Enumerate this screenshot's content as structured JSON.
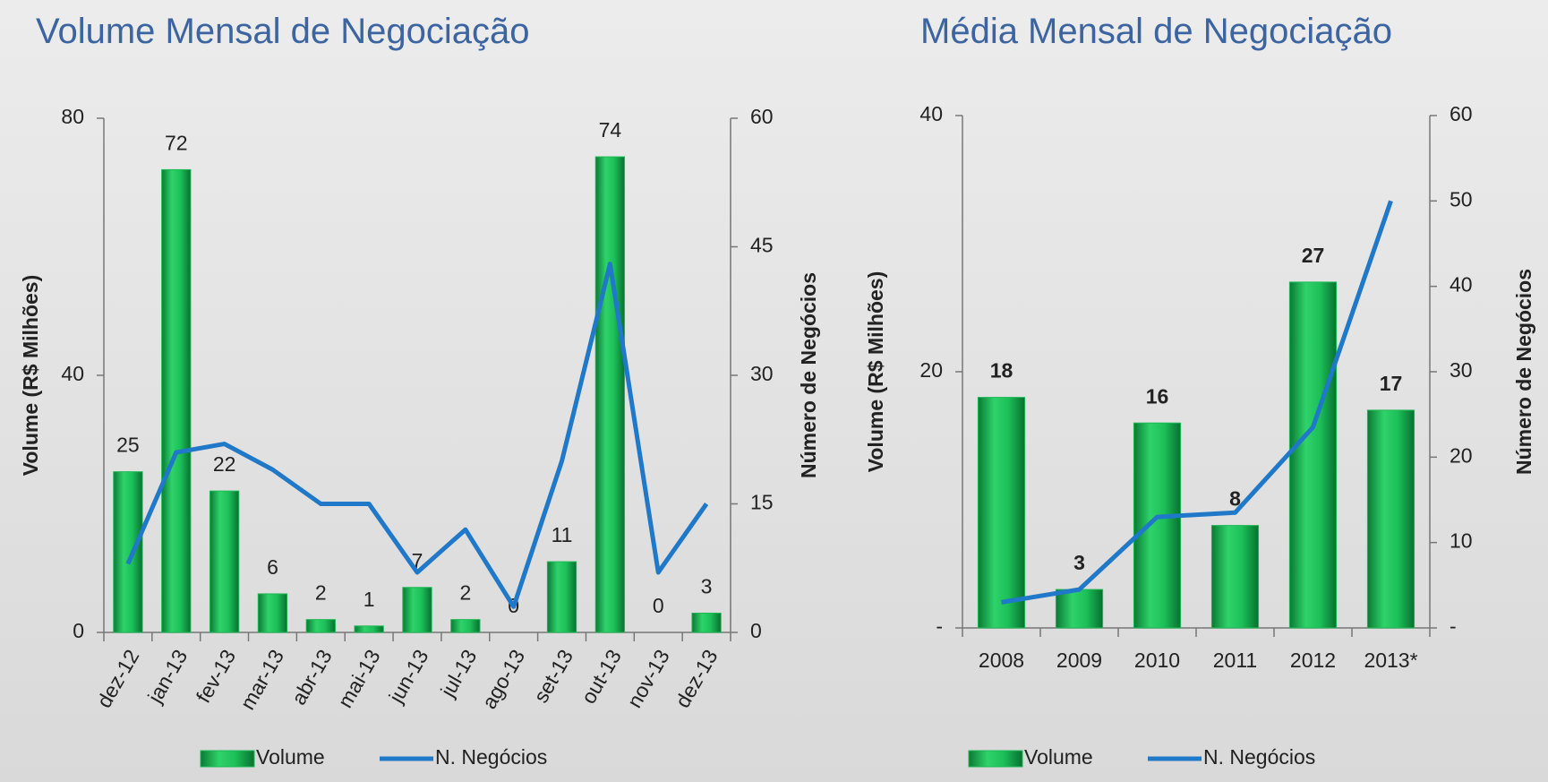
{
  "chart_data": [
    {
      "type": "bar-line",
      "title": "Volume Mensal de Negociação",
      "ylabel": "Volume (R$ Milhões)",
      "y2label": "Número de Negócios",
      "categories": [
        "dez-12",
        "jan-13",
        "fev-13",
        "mar-13",
        "abr-13",
        "mai-13",
        "jun-13",
        "jul-13",
        "ago-13",
        "set-13",
        "out-13",
        "nov-13",
        "dez-13"
      ],
      "series": [
        {
          "name": "Volume",
          "type": "bar",
          "color": "#1db954",
          "values": [
            25,
            72,
            22,
            6,
            2,
            1,
            7,
            2,
            0,
            11,
            74,
            0,
            3
          ]
        },
        {
          "name": "N. Negócios",
          "type": "line",
          "axis": "y2",
          "color": "#1f78c8",
          "values": [
            8,
            21,
            22,
            19,
            15,
            15,
            7,
            12,
            3,
            20,
            43,
            7,
            15
          ]
        }
      ],
      "ylim": [
        0,
        80
      ],
      "yticks": [
        0,
        40,
        80
      ],
      "y2lim": [
        0,
        60
      ],
      "y2ticks": [
        0,
        15,
        30,
        45,
        60
      ]
    },
    {
      "type": "bar-line",
      "title": "Média Mensal de Negociação",
      "ylabel": "Volume (R$ Milhões)",
      "y2label": "Número de Negócios",
      "categories": [
        "2008",
        "2009",
        "2010",
        "2011",
        "2012",
        "2013*"
      ],
      "series": [
        {
          "name": "Volume",
          "type": "bar",
          "color": "#1db954",
          "values": [
            18,
            3,
            16,
            8,
            27,
            17
          ]
        },
        {
          "name": "N. Negócios",
          "type": "line",
          "axis": "y2",
          "color": "#1f78c8",
          "values": [
            3,
            4.5,
            13,
            13.5,
            23.5,
            50
          ]
        }
      ],
      "ylim": [
        0,
        40
      ],
      "yticks": [
        {
          "value": 0,
          "label": "-"
        },
        20,
        40
      ],
      "y2lim": [
        0,
        60
      ],
      "y2ticks": [
        {
          "value": 0,
          "label": "-"
        },
        10,
        20,
        30,
        40,
        50,
        60
      ]
    }
  ]
}
